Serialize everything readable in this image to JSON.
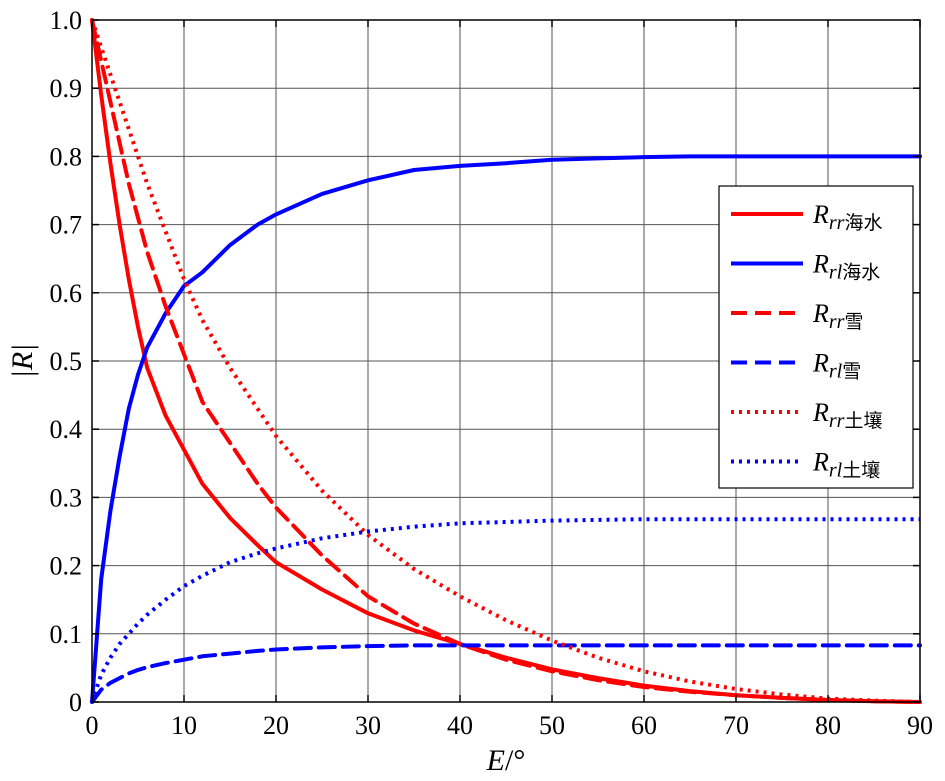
{
  "chart_data": {
    "type": "line",
    "xlabel": {
      "main": "E",
      "unit": "/°"
    },
    "ylabel": "|R|",
    "xlim": [
      0,
      90
    ],
    "ylim": [
      0,
      1
    ],
    "xticks": [
      0,
      10,
      20,
      30,
      40,
      50,
      60,
      70,
      80,
      90
    ],
    "yticks": [
      0,
      0.1,
      0.2,
      0.3,
      0.4,
      0.5,
      0.6,
      0.7,
      0.8,
      0.9,
      1.0
    ],
    "xtick_labels": [
      "0",
      "10",
      "20",
      "30",
      "40",
      "50",
      "60",
      "70",
      "80",
      "90"
    ],
    "ytick_labels": [
      "0",
      "0.1",
      "0.2",
      "0.3",
      "0.4",
      "0.5",
      "0.6",
      "0.7",
      "0.8",
      "0.9",
      "1.0"
    ],
    "grid": true,
    "legend_position": "right",
    "x": [
      0,
      1,
      2,
      3,
      4,
      5,
      6,
      8,
      10,
      12,
      15,
      18,
      20,
      25,
      30,
      35,
      40,
      45,
      50,
      55,
      60,
      65,
      70,
      75,
      80,
      85,
      90
    ],
    "series": [
      {
        "label": {
          "main": "R",
          "sub": "rr",
          "name": "海水"
        },
        "color": "#ff0000",
        "dash": "solid",
        "values": [
          1.0,
          0.89,
          0.79,
          0.7,
          0.62,
          0.55,
          0.49,
          0.42,
          0.37,
          0.32,
          0.27,
          0.23,
          0.205,
          0.165,
          0.13,
          0.105,
          0.085,
          0.065,
          0.048,
          0.035,
          0.024,
          0.016,
          0.01,
          0.006,
          0.003,
          0.001,
          0.0
        ]
      },
      {
        "label": {
          "main": "R",
          "sub": "rl",
          "name": "海水"
        },
        "color": "#0000ff",
        "dash": "solid",
        "values": [
          0.0,
          0.18,
          0.28,
          0.36,
          0.43,
          0.48,
          0.52,
          0.57,
          0.61,
          0.63,
          0.67,
          0.7,
          0.715,
          0.745,
          0.765,
          0.78,
          0.786,
          0.79,
          0.795,
          0.797,
          0.799,
          0.8,
          0.8,
          0.8,
          0.8,
          0.8,
          0.8
        ]
      },
      {
        "label": {
          "main": "R",
          "sub": "rr",
          "name": "雪"
        },
        "color": "#ff0000",
        "dash": "dashed",
        "values": [
          1.0,
          0.94,
          0.88,
          0.82,
          0.76,
          0.71,
          0.66,
          0.58,
          0.51,
          0.44,
          0.38,
          0.32,
          0.285,
          0.215,
          0.155,
          0.115,
          0.085,
          0.062,
          0.045,
          0.032,
          0.022,
          0.015,
          0.01,
          0.006,
          0.003,
          0.001,
          0.0
        ]
      },
      {
        "label": {
          "main": "R",
          "sub": "rl",
          "name": "雪"
        },
        "color": "#0000ff",
        "dash": "dashed",
        "values": [
          0.0,
          0.018,
          0.028,
          0.035,
          0.042,
          0.047,
          0.051,
          0.057,
          0.062,
          0.067,
          0.071,
          0.075,
          0.077,
          0.08,
          0.082,
          0.083,
          0.083,
          0.083,
          0.083,
          0.083,
          0.083,
          0.083,
          0.083,
          0.083,
          0.083,
          0.083,
          0.083
        ]
      },
      {
        "label": {
          "main": "R",
          "sub": "rr",
          "name": "土壤"
        },
        "color": "#ff0000",
        "dash": "dotted",
        "values": [
          1.0,
          0.96,
          0.92,
          0.88,
          0.84,
          0.8,
          0.76,
          0.69,
          0.62,
          0.56,
          0.49,
          0.43,
          0.39,
          0.31,
          0.245,
          0.195,
          0.155,
          0.12,
          0.09,
          0.065,
          0.045,
          0.03,
          0.019,
          0.011,
          0.005,
          0.002,
          0.0
        ]
      },
      {
        "label": {
          "main": "R",
          "sub": "rl",
          "name": "土壤"
        },
        "color": "#0000ff",
        "dash": "dotted",
        "values": [
          0.0,
          0.04,
          0.065,
          0.085,
          0.1,
          0.115,
          0.128,
          0.15,
          0.17,
          0.185,
          0.205,
          0.218,
          0.225,
          0.24,
          0.25,
          0.257,
          0.262,
          0.264,
          0.266,
          0.267,
          0.268,
          0.268,
          0.268,
          0.268,
          0.268,
          0.268,
          0.268
        ]
      }
    ]
  }
}
